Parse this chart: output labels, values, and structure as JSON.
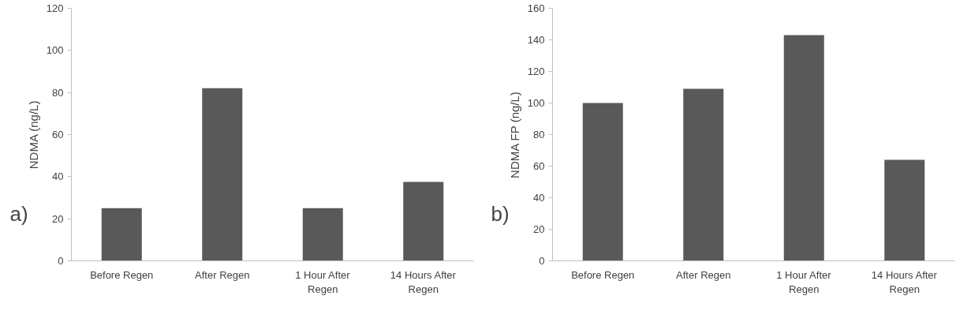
{
  "chart_data": [
    {
      "type": "bar",
      "categories": [
        "Before Regen",
        "After Regen",
        "1 Hour After Regen",
        "14 Hours After Regen"
      ],
      "values": [
        25,
        82,
        25,
        37.5
      ],
      "color": "#595959",
      "ylabel": "NDMA (ng/L)",
      "ylim": [
        0,
        120
      ],
      "yticks": [
        0,
        20,
        40,
        60,
        80,
        100,
        120
      ],
      "grid": false,
      "annotations": [
        "a)"
      ]
    },
    {
      "type": "bar",
      "categories": [
        "Before Regen",
        "After Regen",
        "1 Hour After Regen",
        "14 Hours After Regen"
      ],
      "values": [
        100,
        109,
        143,
        64
      ],
      "color": "#595959",
      "ylabel": "NDMA FP (ng/L)",
      "ylim": [
        0,
        160
      ],
      "yticks": [
        0,
        20,
        40,
        60,
        80,
        100,
        120,
        140,
        160
      ],
      "grid": false,
      "annotations": [
        "b)"
      ]
    }
  ]
}
